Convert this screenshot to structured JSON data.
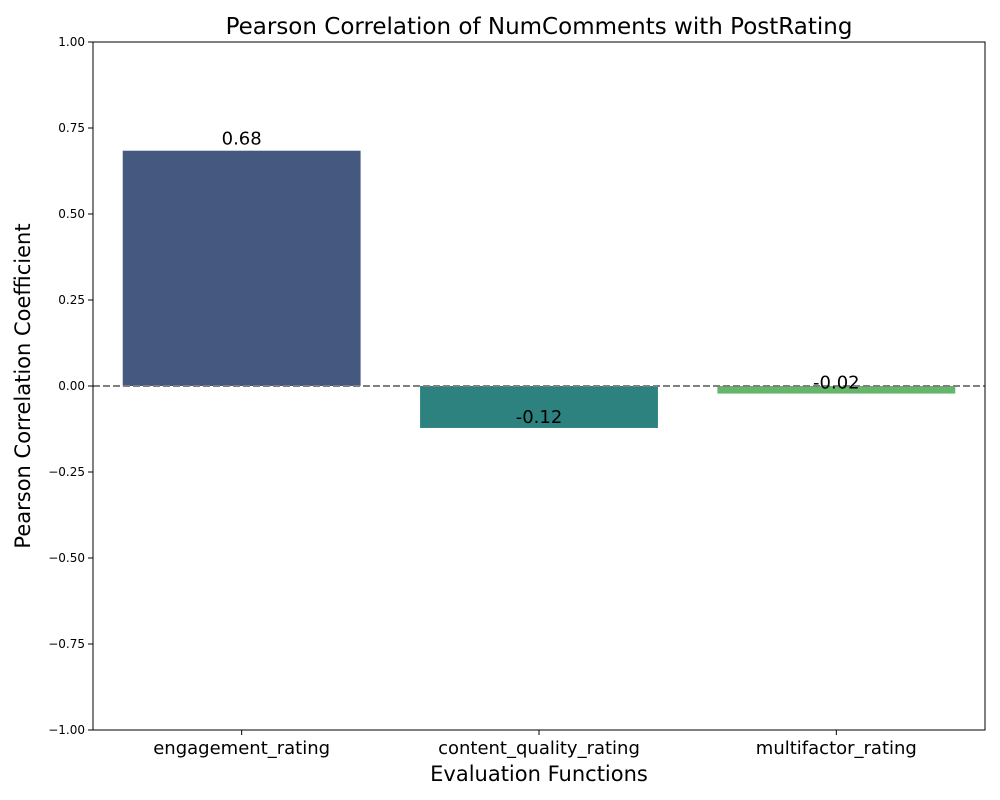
{
  "chart_data": {
    "type": "bar",
    "title": "Pearson Correlation of NumComments with PostRating",
    "xlabel": "Evaluation Functions",
    "ylabel": "Pearson Correlation Coefficient",
    "categories": [
      "engagement_rating",
      "content_quality_rating",
      "multifactor_rating"
    ],
    "values": [
      0.684,
      -0.122,
      -0.022
    ],
    "value_labels": [
      "0.68",
      "-0.12",
      "-0.02"
    ],
    "colors": [
      "#45587f",
      "#2d8280",
      "#63b66a"
    ],
    "ylim": [
      -1.0,
      1.0
    ],
    "yticks": [
      -1.0,
      -0.75,
      -0.5,
      -0.25,
      0.0,
      0.25,
      0.5,
      0.75,
      1.0
    ],
    "ytick_labels": [
      "−1.00",
      "−0.75",
      "−0.50",
      "−0.25",
      "0.00",
      "0.25",
      "0.50",
      "0.75",
      "1.00"
    ],
    "reference_line": 0.0,
    "reference_line_style": "dashed",
    "reference_line_color": "#808080",
    "grid": false,
    "legend": "none"
  }
}
